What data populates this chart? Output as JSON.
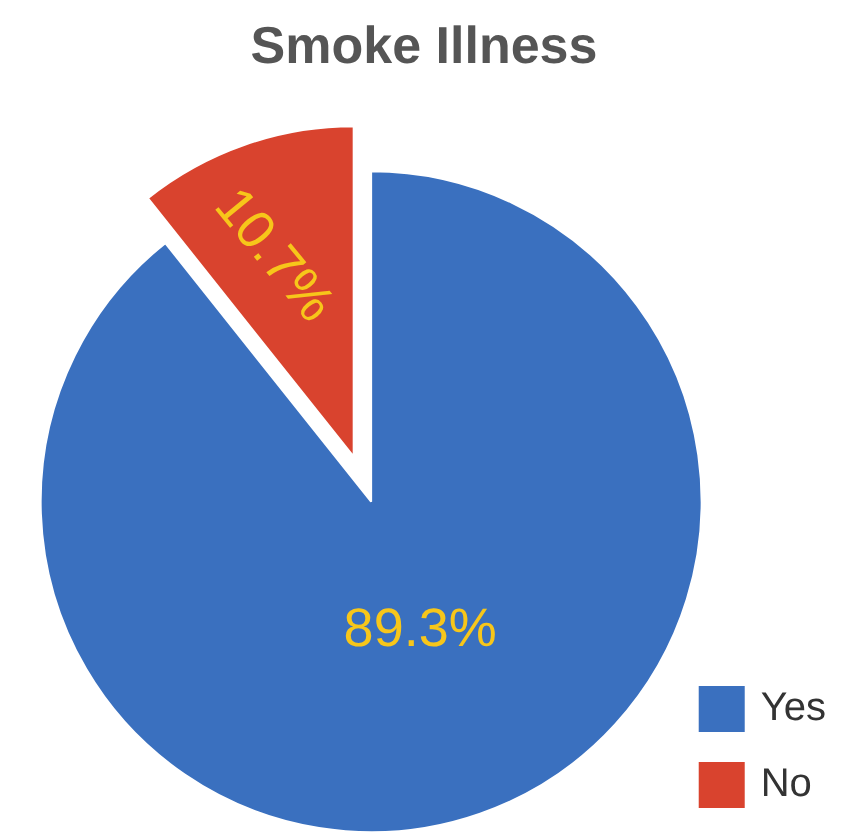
{
  "chart_data": {
    "type": "pie",
    "title": "Smoke Illness",
    "categories": [
      "Yes",
      "No"
    ],
    "values": [
      89.3,
      10.7
    ],
    "colors": [
      "#3a70bf",
      "#d9432e"
    ],
    "value_labels": [
      "89.3%",
      "10.7%"
    ],
    "legend": "bottom right"
  }
}
